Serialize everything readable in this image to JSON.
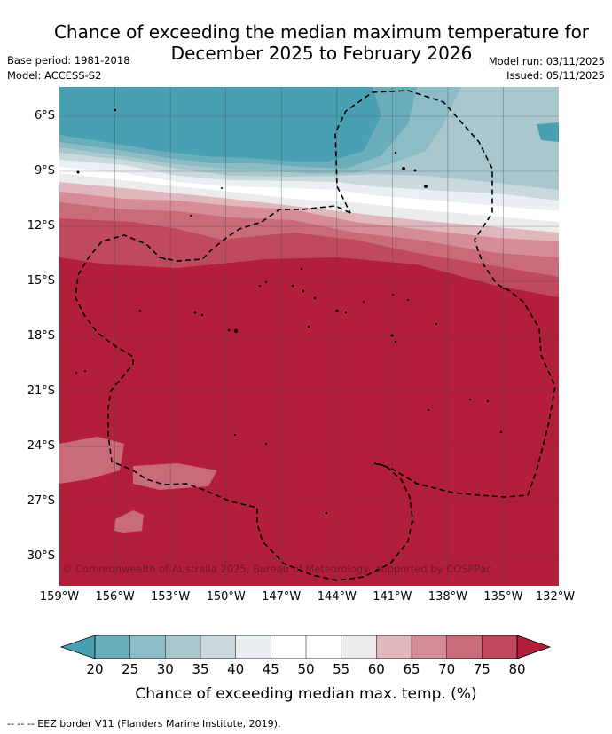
{
  "title_line1": "Chance of exceeding the median maximum temperature for",
  "title_line2": "December 2025 to February 2026",
  "base_period": "Base period: 1981-2018",
  "model": "Model: ACCESS-S2",
  "model_run": "Model run: 03/11/2025",
  "issued": "Issued: 05/11/2025",
  "copyright": "© Commonwealth of Australia 2025, Bureau of Meteorology, supported by COSPPac",
  "lat_labels": [
    "6°S",
    "9°S",
    "12°S",
    "15°S",
    "18°S",
    "21°S",
    "24°S",
    "27°S",
    "30°S"
  ],
  "lon_labels": [
    "159°W",
    "156°W",
    "153°W",
    "150°W",
    "147°W",
    "144°W",
    "141°W",
    "138°W",
    "135°W",
    "132°W"
  ],
  "colorbar": {
    "ticks": [
      "20",
      "25",
      "30",
      "35",
      "40",
      "45",
      "50",
      "55",
      "60",
      "65",
      "70",
      "75",
      "80"
    ],
    "title": "Chance of exceeding median max. temp. (%)",
    "colors": {
      "below_20": "#4aa0b3",
      "20-25": "#6aaebb",
      "25-30": "#8cbcc6",
      "30-35": "#a9c8cd",
      "35-40": "#c9d9dd",
      "40-45": "#eaf0f2",
      "45-55": "#ffffff",
      "55-60": "#ececec",
      "60-65": "#e0b7bd",
      "65-70": "#d68c96",
      "70-75": "#c96b78",
      "75-80": "#c04a5d",
      "above_80": "#b31e3a"
    }
  },
  "footnote": "-- -- -- EEZ border V11 (Flanders Marine Institute, 2019)."
}
